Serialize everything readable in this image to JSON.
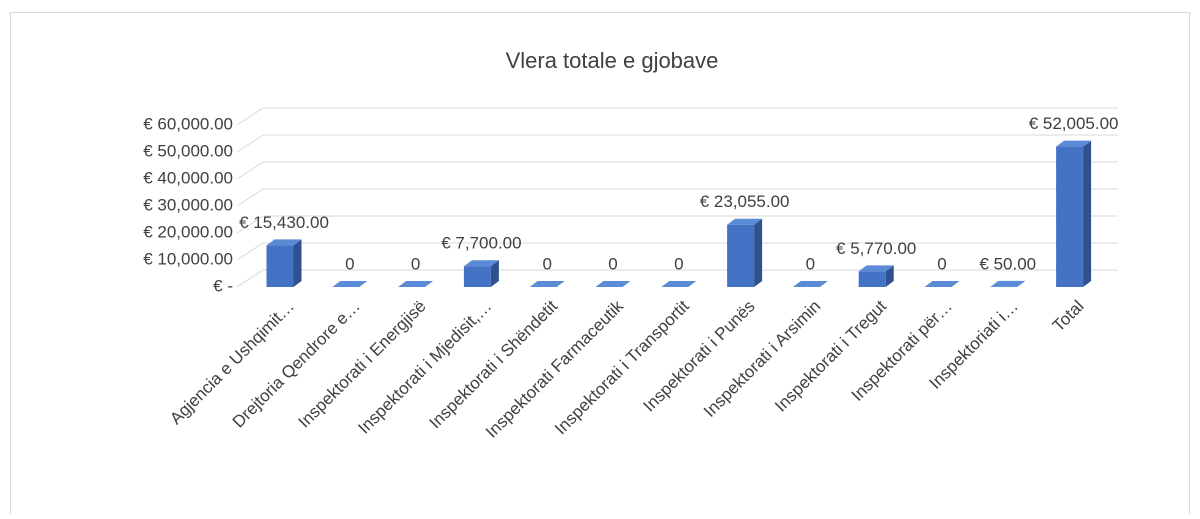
{
  "chart_data": {
    "type": "bar3d",
    "title": "Vlera totale e gjobave",
    "categories": [
      "Agjencia e Ushqimit…",
      "Drejtoria Qendrore e…",
      "Inspektorati i Energjisë",
      "Inspektorati i Mjedisit,…",
      "Inspektorati i Shëndetit",
      "Inspektorati Farmaceutik",
      "Inspektorati i Transportit",
      "Inspektorati i Punës",
      "Inspektorati i Arsimin",
      "Inspektorati i Tregut",
      "Inspektorati për…",
      "Inspektoriati i…",
      "Total"
    ],
    "values": [
      15430,
      0,
      0,
      7700,
      0,
      0,
      0,
      23055,
      0,
      5770,
      0,
      50,
      52005
    ],
    "value_labels": [
      "€ 15,430.00",
      "0",
      "0",
      "€ 7,700.00",
      "0",
      "0",
      "0",
      "€ 23,055.00",
      "0",
      "€ 5,770.00",
      "0",
      "€ 50.00",
      "€ 52,005.00"
    ],
    "color": "#4472c4",
    "ylim": [
      0,
      60000
    ],
    "yticks": [
      {
        "value": 0,
        "label": "€ -"
      },
      {
        "value": 10000,
        "label": "€ 10,000.00"
      },
      {
        "value": 20000,
        "label": "€ 20,000.00"
      },
      {
        "value": 30000,
        "label": "€ 30,000.00"
      },
      {
        "value": 40000,
        "label": "€ 40,000.00"
      },
      {
        "value": 50000,
        "label": "€ 50,000.00"
      },
      {
        "value": 60000,
        "label": "€ 60,000.00"
      }
    ],
    "grid": true
  }
}
